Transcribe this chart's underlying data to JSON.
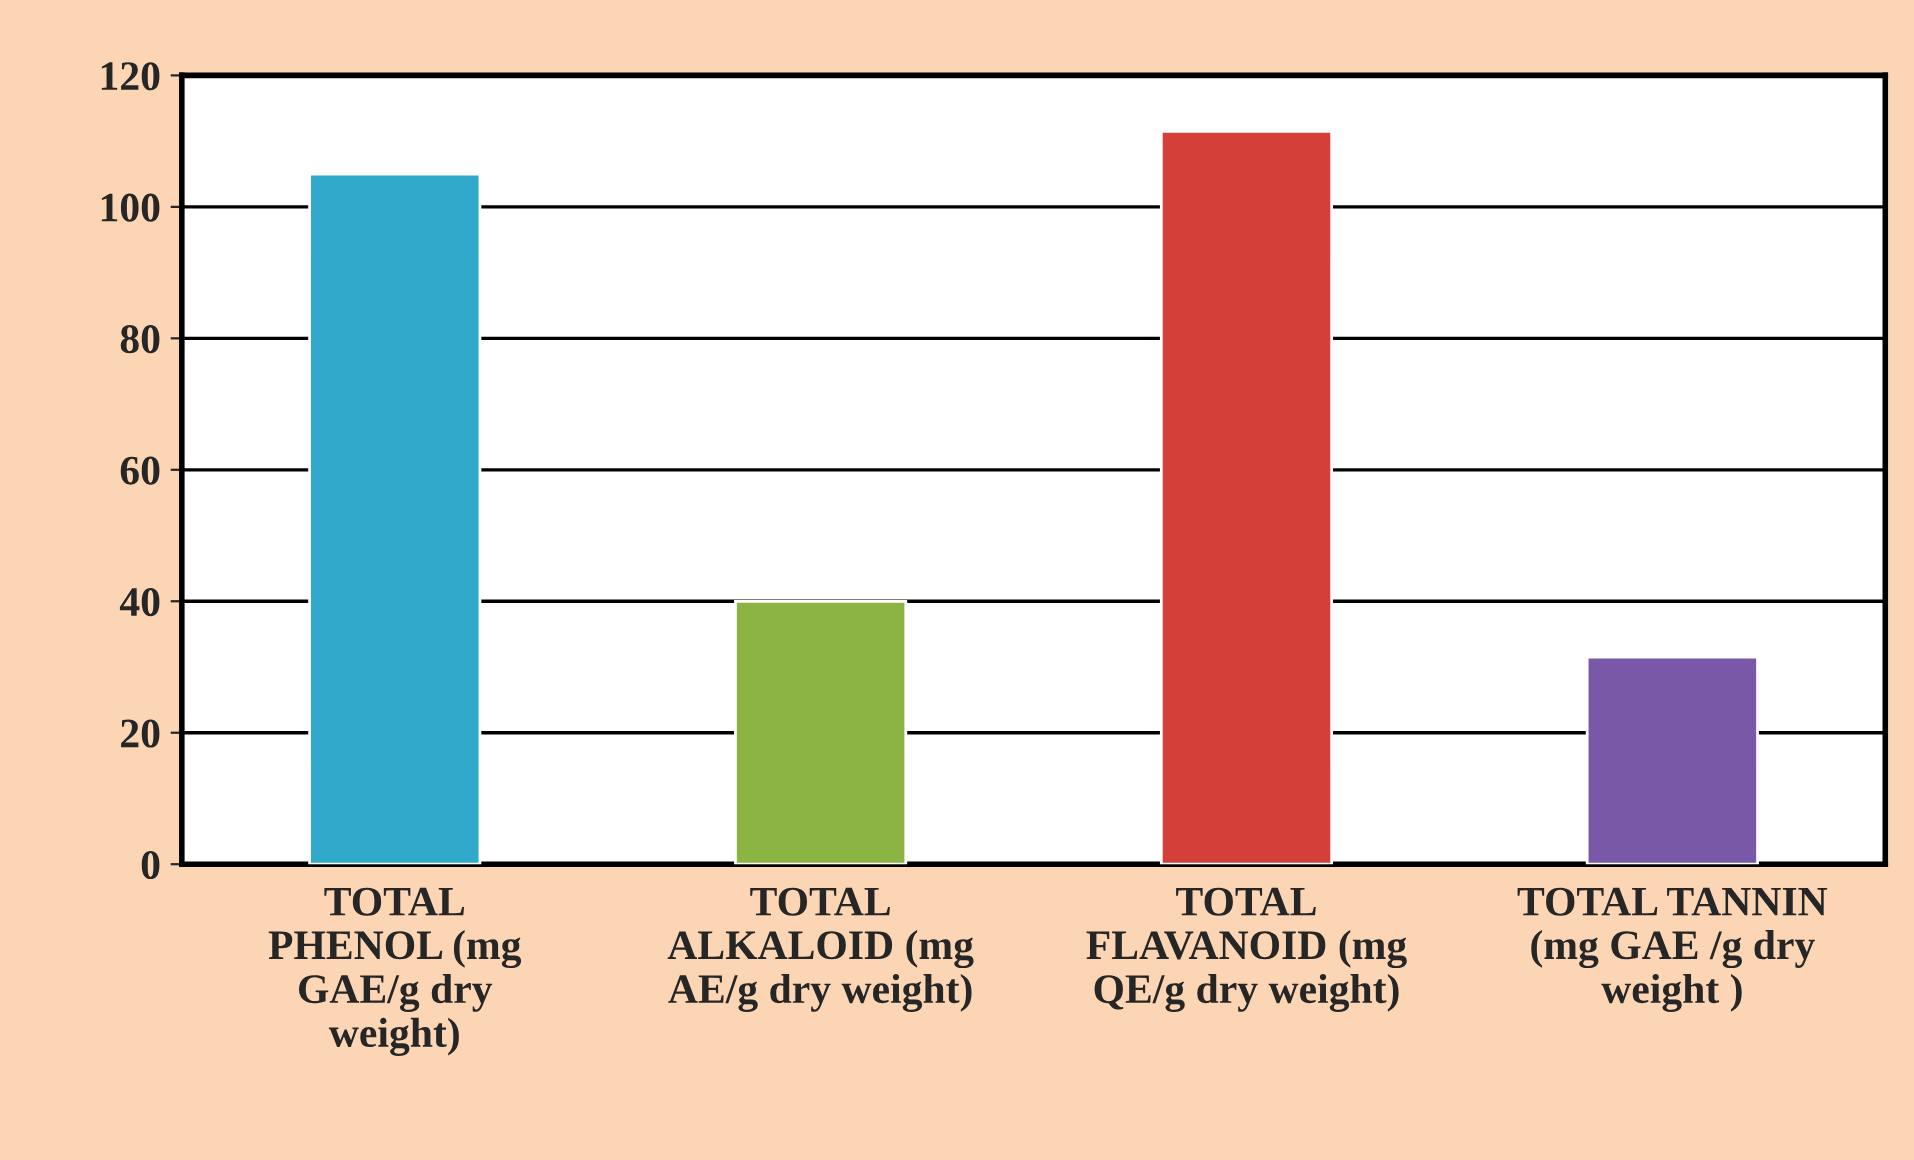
{
  "chart_data": {
    "type": "bar",
    "categories": [
      "TOTAL\nPHENOL (mg\nGAE/g dry\nweight)",
      "TOTAL\nALKALOID (mg\nAE/g dry weight)",
      "TOTAL\nFLAVANOID (mg\nQE/g dry weight)",
      "TOTAL TANNIN\n(mg GAE /g dry\nweight )"
    ],
    "values": [
      105,
      40,
      111.5,
      31.5
    ],
    "colors": [
      "#31a9cb",
      "#8bb443",
      "#d43f3a",
      "#7a58a8"
    ],
    "ylim": [
      0,
      120
    ],
    "yticks": [
      0,
      20,
      40,
      60,
      80,
      100,
      120
    ],
    "grid": "y"
  }
}
